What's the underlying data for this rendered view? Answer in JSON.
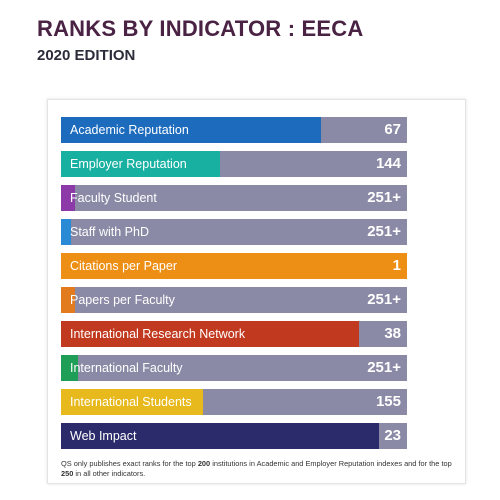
{
  "header": {
    "title": "RANKS BY INDICATOR : EECA",
    "subtitle": "2020 EDITION"
  },
  "footnote": {
    "part1": "QS only publishes exact ranks for the top ",
    "num1": "200",
    "part2": " institutions in Academic and Employer Reputation indexes and for the top ",
    "num2": "250",
    "part3": " in all other indicators."
  },
  "chart_data": {
    "type": "bar",
    "orientation": "horizontal",
    "title": "RANKS BY INDICATOR : EECA",
    "subtitle": "2020 EDITION",
    "categories": [
      "Academic Reputation",
      "Employer Reputation",
      "Faculty Student",
      "Staff with PhD",
      "Citations per Paper",
      "Papers per Faculty",
      "International Research Network",
      "International Faculty",
      "International Students",
      "Web Impact"
    ],
    "values": [
      "67",
      "144",
      "251+",
      "251+",
      "1",
      "251+",
      "38",
      "251+",
      "155",
      "23"
    ],
    "fill_fraction": [
      0.75,
      0.46,
      0.04,
      0.03,
      1.0,
      0.04,
      0.86,
      0.05,
      0.41,
      0.92
    ],
    "colors": [
      "#1c6bbd",
      "#18b0a0",
      "#8c3aa8",
      "#2b8ad6",
      "#ec8f14",
      "#e27a1e",
      "#c1391f",
      "#1e9e57",
      "#e7b91d",
      "#2b2b6b"
    ],
    "track_color": "#8a8aa6"
  }
}
